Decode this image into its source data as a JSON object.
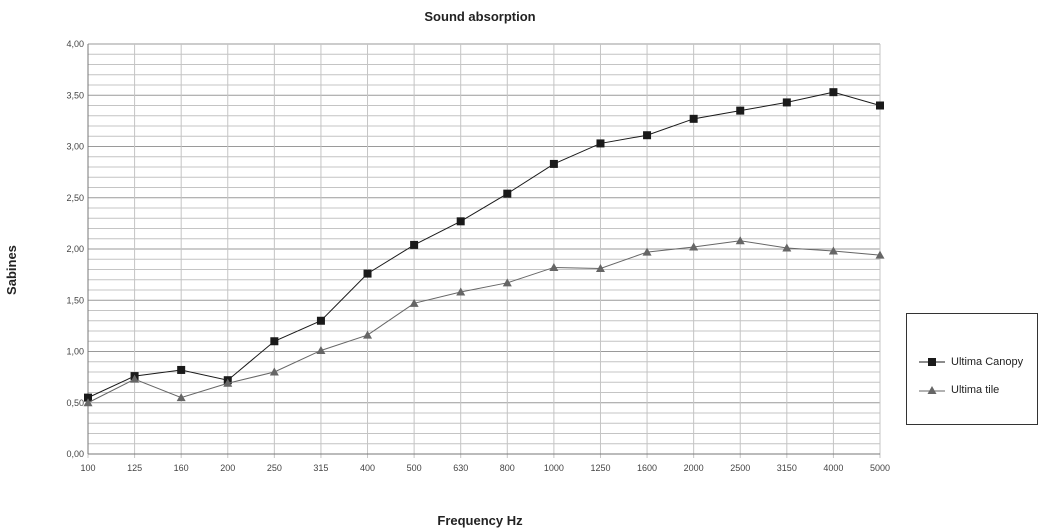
{
  "chart_data": {
    "type": "line",
    "title": "Sound absorption",
    "xlabel": "Frequency Hz",
    "ylabel": "Sabines",
    "categories": [
      "100",
      "125",
      "160",
      "200",
      "250",
      "315",
      "400",
      "500",
      "630",
      "800",
      "1000",
      "1250",
      "1600",
      "2000",
      "2500",
      "3150",
      "4000",
      "5000"
    ],
    "ylim": [
      0,
      4
    ],
    "y_ticks": [
      "0,00",
      "0,50",
      "1,00",
      "1,50",
      "2,00",
      "2,50",
      "3,00",
      "3,50",
      "4,00"
    ],
    "grid": true,
    "legend_position": "right",
    "series": [
      {
        "name": "Ultima Canopy",
        "marker": "square",
        "color": "#1a1a1a",
        "values": [
          0.55,
          0.76,
          0.82,
          0.72,
          1.1,
          1.3,
          1.76,
          2.04,
          2.27,
          2.54,
          2.83,
          3.03,
          3.11,
          3.27,
          3.35,
          3.43,
          3.53,
          3.4
        ]
      },
      {
        "name": "Ultima tile",
        "marker": "triangle",
        "color": "#666666",
        "values": [
          0.5,
          0.73,
          0.55,
          0.69,
          0.8,
          1.01,
          1.16,
          1.47,
          1.58,
          1.67,
          1.82,
          1.81,
          1.97,
          2.02,
          2.08,
          2.01,
          1.98,
          1.94
        ]
      }
    ]
  }
}
